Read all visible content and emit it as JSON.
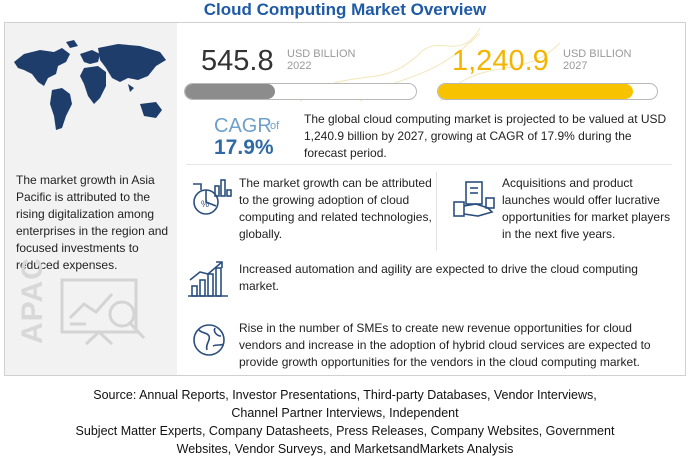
{
  "title": "Cloud Computing Market Overview",
  "colors": {
    "title": "#1f5aa6",
    "bar_2022": "#8c8c8c",
    "bar_2027": "#f7c300",
    "cagr": "#2e6aa3"
  },
  "chart_data": {
    "type": "bar",
    "categories": [
      "2022",
      "2027"
    ],
    "values": [
      545.8,
      1240.9
    ],
    "value_labels": [
      "545.8",
      "1,240.9"
    ],
    "unit": "USD BILLION",
    "ylim": [
      0,
      1400
    ],
    "cagr": "17.9%"
  },
  "market": {
    "y2022": {
      "value": "545.8",
      "unit": "USD BILLION",
      "year": "2022",
      "fill": 0.39
    },
    "y2027": {
      "value": "1,240.9",
      "unit": "USD BILLION",
      "year": "2027",
      "fill": 0.89
    }
  },
  "cagr": {
    "label": "CAGR",
    "of": "of",
    "value": "17.9%",
    "text": "The global cloud computing market is projected to be valued at USD 1,240.9 billion by 2027, growing at CAGR of 17.9% during the forecast period."
  },
  "left": {
    "text": "The market growth in Asia Pacific is attributed to the rising digitalization among enterprises in the region and focused investments to reduced expenses.",
    "region": "APAC",
    "icons": [
      "world-map-icon",
      "analysis-board-icon"
    ]
  },
  "insights": [
    {
      "icon": "chart-analytics-icon",
      "text": "The market growth can be attributed to the growing adoption of cloud computing and related technologies, globally."
    },
    {
      "icon": "acquisition-handshake-icon",
      "text": "Acquisitions and product launches would offer lucrative opportunities for market players in the next five years."
    },
    {
      "icon": "growth-bar-chart-icon",
      "text": "Increased automation and agility are expected to drive the cloud computing market."
    },
    {
      "icon": "globe-icon",
      "text": "Rise in the number of SMEs to create new revenue opportunities for cloud vendors and increase in the adoption of hybrid cloud services are expected to provide growth opportunities for the vendors in the cloud computing market."
    }
  ],
  "source": {
    "line1": "Source: Annual Reports, Investor Presentations, Third-party Databases, Vendor Interviews,",
    "line2": "Channel Partner Interviews, Independent",
    "line3": "Subject Matter Experts, Company Datasheets, Press Releases, Company Websites, Government",
    "line4": "Websites, Vendor Surveys, and MarketsandMarkets Analysis"
  }
}
